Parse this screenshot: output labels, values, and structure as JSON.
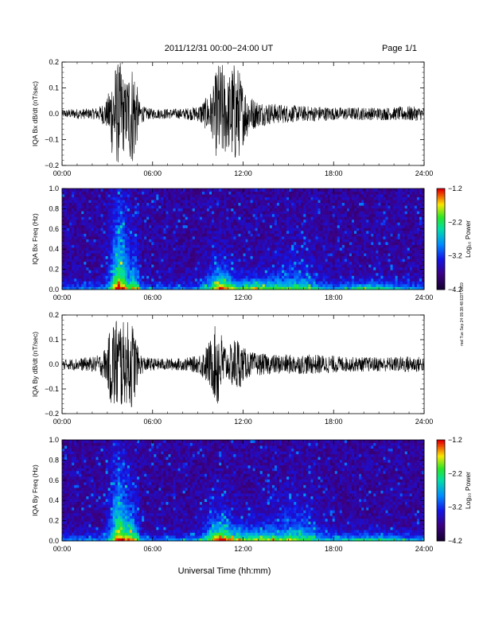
{
  "header": {
    "title": "2011/12/31   00:00−24:00 UT",
    "page": "Page 1/1"
  },
  "footer": {
    "xlabel": "Universal Time (hh:mm)"
  },
  "side_note": "mel Tue Sep 24 09:38:48 EDT 2019",
  "colors": {
    "trace": "#000000",
    "frame": "#000000"
  },
  "chart_data": [
    {
      "type": "line",
      "ylabel": "IQA Bx dB/dt (nT/sec)",
      "xlim": [
        0,
        24
      ],
      "ylim": [
        -0.2,
        0.2
      ],
      "xticks": [
        "00:00",
        "06:00",
        "12:00",
        "18:00",
        "24:00"
      ],
      "yticks": [
        "−0.2",
        "−0.1",
        "0.0",
        "0.1",
        "0.2"
      ],
      "series": [
        {
          "x": [
            0,
            1,
            2,
            2.5,
            3,
            3.3,
            3.6,
            3.9,
            4.2,
            4.5,
            4.8,
            5.1,
            5.5,
            6,
            7,
            8,
            9,
            9.5,
            10,
            10.3,
            10.6,
            11,
            11.3,
            11.6,
            12,
            12.5,
            13,
            14,
            15,
            16,
            17,
            18,
            19,
            20,
            21,
            22,
            23,
            24
          ],
          "amp": [
            0.015,
            0.02,
            0.02,
            0.03,
            0.06,
            0.16,
            0.2,
            0.2,
            0.12,
            0.2,
            0.2,
            0.05,
            0.025,
            0.02,
            0.02,
            0.02,
            0.03,
            0.06,
            0.1,
            0.2,
            0.2,
            0.14,
            0.2,
            0.2,
            0.12,
            0.07,
            0.05,
            0.04,
            0.035,
            0.03,
            0.03,
            0.025,
            0.025,
            0.025,
            0.025,
            0.025,
            0.03,
            0.025
          ]
        }
      ]
    },
    {
      "type": "heatmap",
      "ylabel": "IQA Bx Freq (Hz)",
      "colorbar_label": "Log₁₀ Power",
      "xlim": [
        0,
        24
      ],
      "ylim": [
        0,
        1
      ],
      "xticks": [
        "00:00",
        "06:00",
        "12:00",
        "18:00",
        "24:00"
      ],
      "yticks": [
        "0.0",
        "0.2",
        "0.4",
        "0.6",
        "0.8",
        "1.0"
      ],
      "clim": [
        -4.2,
        -1.2
      ],
      "cticks": [
        "−4.2",
        "−3.2",
        "−2.2",
        "−1.2"
      ],
      "activity": [
        {
          "t": 3.8,
          "w": 0.6,
          "level": 1.0,
          "fmax": 1.0
        },
        {
          "t": 4.8,
          "w": 0.35,
          "level": 0.7,
          "fmax": 0.5
        },
        {
          "t": 10.5,
          "w": 0.9,
          "level": 0.85,
          "fmax": 0.35
        },
        {
          "t": 12.8,
          "w": 1.5,
          "level": 0.6,
          "fmax": 0.2
        },
        {
          "t": 15.5,
          "w": 1.5,
          "level": 0.5,
          "fmax": 0.4
        },
        {
          "t": 20.5,
          "w": 2.2,
          "level": 0.45,
          "fmax": 0.12
        }
      ]
    },
    {
      "type": "line",
      "ylabel": "IQA By dB/dt (nT/sec)",
      "xlim": [
        0,
        24
      ],
      "ylim": [
        -0.2,
        0.2
      ],
      "xticks": [
        "00:00",
        "06:00",
        "12:00",
        "18:00",
        "24:00"
      ],
      "yticks": [
        "−0.2",
        "−0.1",
        "0.0",
        "0.1",
        "0.2"
      ],
      "series": [
        {
          "x": [
            0,
            1,
            2,
            2.5,
            3,
            3.3,
            3.6,
            3.9,
            4.2,
            4.5,
            4.8,
            5.1,
            5.5,
            6,
            7,
            8,
            9,
            9.5,
            10,
            10.3,
            10.6,
            11,
            11.3,
            11.6,
            12,
            12.5,
            13,
            14,
            15,
            16,
            17,
            18,
            19,
            20,
            21,
            22,
            23,
            24
          ],
          "amp": [
            0.02,
            0.025,
            0.03,
            0.04,
            0.08,
            0.2,
            0.2,
            0.2,
            0.15,
            0.2,
            0.15,
            0.05,
            0.03,
            0.025,
            0.025,
            0.025,
            0.035,
            0.07,
            0.12,
            0.2,
            0.12,
            0.06,
            0.1,
            0.12,
            0.07,
            0.05,
            0.045,
            0.04,
            0.04,
            0.04,
            0.04,
            0.035,
            0.03,
            0.03,
            0.03,
            0.03,
            0.035,
            0.03
          ]
        }
      ]
    },
    {
      "type": "heatmap",
      "ylabel": "IQA By Freq (Hz)",
      "colorbar_label": "Log₁₀ Power",
      "xlim": [
        0,
        24
      ],
      "ylim": [
        0,
        1
      ],
      "xticks": [
        "00:00",
        "06:00",
        "12:00",
        "18:00",
        "24:00"
      ],
      "yticks": [
        "0.0",
        "0.2",
        "0.4",
        "0.6",
        "0.8",
        "1.0"
      ],
      "clim": [
        -4.2,
        -1.2
      ],
      "cticks": [
        "−4.2",
        "−3.2",
        "−2.2",
        "−1.2"
      ],
      "activity": [
        {
          "t": 3.8,
          "w": 0.6,
          "level": 1.0,
          "fmax": 0.9
        },
        {
          "t": 4.7,
          "w": 0.4,
          "level": 0.75,
          "fmax": 0.45
        },
        {
          "t": 10.5,
          "w": 1.0,
          "level": 0.95,
          "fmax": 0.35
        },
        {
          "t": 12.8,
          "w": 1.5,
          "level": 0.65,
          "fmax": 0.22
        },
        {
          "t": 15.5,
          "w": 1.6,
          "level": 0.55,
          "fmax": 0.45
        },
        {
          "t": 20.5,
          "w": 2.2,
          "level": 0.45,
          "fmax": 0.12
        }
      ]
    }
  ]
}
